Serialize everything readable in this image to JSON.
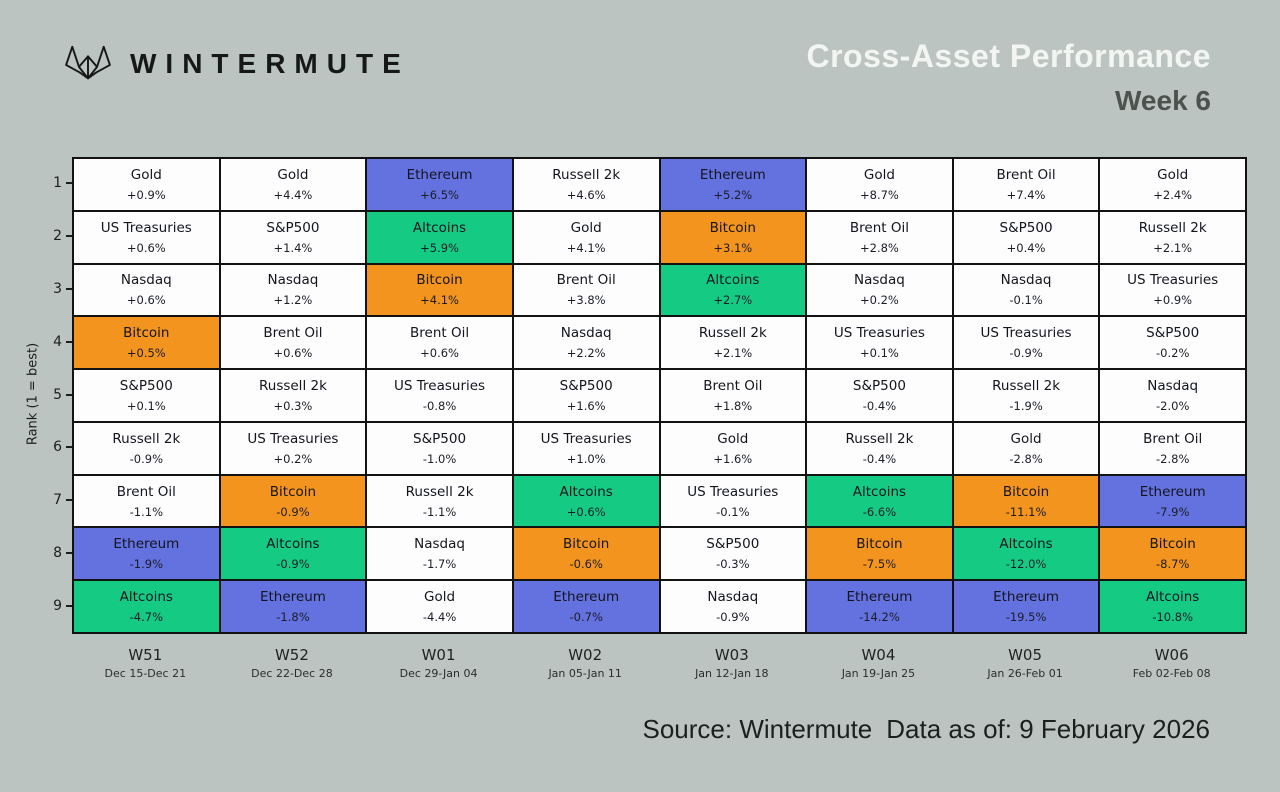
{
  "header": {
    "brand": "WINTERMUTE",
    "title": "Cross-Asset Performance",
    "subtitle": "Week 6"
  },
  "axis": {
    "ylabel": "Rank (1 = best)",
    "ranks": [
      "1",
      "2",
      "3",
      "4",
      "5",
      "6",
      "7",
      "8",
      "9"
    ]
  },
  "footer": {
    "source": "Source: Wintermute",
    "data_as_of": "Data as of: 9 February 2026"
  },
  "colors": {
    "background": "#bcc4c1",
    "cell_default": "#fcfdfc",
    "grid_border": "#121212",
    "title_light": "#f3f5f2",
    "subtitle_dark": "#4c524e",
    "asset_colors": {
      "Bitcoin": "#f3941f",
      "Ethereum": "#6372de",
      "Altcoins": "#15cb83"
    }
  },
  "chart_data": {
    "type": "heatmap",
    "title": "Cross-Asset Performance Week 6",
    "ylabel": "Rank (1 = best)",
    "legend_note": "colored cells highlight crypto assets: Bitcoin (orange), Ethereum (blue), Altcoins (green); all other assets white",
    "rank_range": [
      1,
      9
    ],
    "columns": [
      {
        "week": "W51",
        "dates": "Dec 15-Dec 21",
        "ranking": [
          {
            "asset": "Gold",
            "change": "+0.9%"
          },
          {
            "asset": "US Treasuries",
            "change": "+0.6%"
          },
          {
            "asset": "Nasdaq",
            "change": "+0.6%"
          },
          {
            "asset": "Bitcoin",
            "change": "+0.5%"
          },
          {
            "asset": "S&P500",
            "change": "+0.1%"
          },
          {
            "asset": "Russell 2k",
            "change": "-0.9%"
          },
          {
            "asset": "Brent Oil",
            "change": "-1.1%"
          },
          {
            "asset": "Ethereum",
            "change": "-1.9%"
          },
          {
            "asset": "Altcoins",
            "change": "-4.7%"
          }
        ]
      },
      {
        "week": "W52",
        "dates": "Dec 22-Dec 28",
        "ranking": [
          {
            "asset": "Gold",
            "change": "+4.4%"
          },
          {
            "asset": "S&P500",
            "change": "+1.4%"
          },
          {
            "asset": "Nasdaq",
            "change": "+1.2%"
          },
          {
            "asset": "Brent Oil",
            "change": "+0.6%"
          },
          {
            "asset": "Russell 2k",
            "change": "+0.3%"
          },
          {
            "asset": "US Treasuries",
            "change": "+0.2%"
          },
          {
            "asset": "Bitcoin",
            "change": "-0.9%"
          },
          {
            "asset": "Altcoins",
            "change": "-0.9%"
          },
          {
            "asset": "Ethereum",
            "change": "-1.8%"
          }
        ]
      },
      {
        "week": "W01",
        "dates": "Dec 29-Jan 04",
        "ranking": [
          {
            "asset": "Ethereum",
            "change": "+6.5%"
          },
          {
            "asset": "Altcoins",
            "change": "+5.9%"
          },
          {
            "asset": "Bitcoin",
            "change": "+4.1%"
          },
          {
            "asset": "Brent Oil",
            "change": "+0.6%"
          },
          {
            "asset": "US Treasuries",
            "change": "-0.8%"
          },
          {
            "asset": "S&P500",
            "change": "-1.0%"
          },
          {
            "asset": "Russell 2k",
            "change": "-1.1%"
          },
          {
            "asset": "Nasdaq",
            "change": "-1.7%"
          },
          {
            "asset": "Gold",
            "change": "-4.4%"
          }
        ]
      },
      {
        "week": "W02",
        "dates": "Jan 05-Jan 11",
        "ranking": [
          {
            "asset": "Russell 2k",
            "change": "+4.6%"
          },
          {
            "asset": "Gold",
            "change": "+4.1%"
          },
          {
            "asset": "Brent Oil",
            "change": "+3.8%"
          },
          {
            "asset": "Nasdaq",
            "change": "+2.2%"
          },
          {
            "asset": "S&P500",
            "change": "+1.6%"
          },
          {
            "asset": "US Treasuries",
            "change": "+1.0%"
          },
          {
            "asset": "Altcoins",
            "change": "+0.6%"
          },
          {
            "asset": "Bitcoin",
            "change": "-0.6%"
          },
          {
            "asset": "Ethereum",
            "change": "-0.7%"
          }
        ]
      },
      {
        "week": "W03",
        "dates": "Jan 12-Jan 18",
        "ranking": [
          {
            "asset": "Ethereum",
            "change": "+5.2%"
          },
          {
            "asset": "Bitcoin",
            "change": "+3.1%"
          },
          {
            "asset": "Altcoins",
            "change": "+2.7%"
          },
          {
            "asset": "Russell 2k",
            "change": "+2.1%"
          },
          {
            "asset": "Brent Oil",
            "change": "+1.8%"
          },
          {
            "asset": "Gold",
            "change": "+1.6%"
          },
          {
            "asset": "US Treasuries",
            "change": "-0.1%"
          },
          {
            "asset": "S&P500",
            "change": "-0.3%"
          },
          {
            "asset": "Nasdaq",
            "change": "-0.9%"
          }
        ]
      },
      {
        "week": "W04",
        "dates": "Jan 19-Jan 25",
        "ranking": [
          {
            "asset": "Gold",
            "change": "+8.7%"
          },
          {
            "asset": "Brent Oil",
            "change": "+2.8%"
          },
          {
            "asset": "Nasdaq",
            "change": "+0.2%"
          },
          {
            "asset": "US Treasuries",
            "change": "+0.1%"
          },
          {
            "asset": "S&P500",
            "change": "-0.4%"
          },
          {
            "asset": "Russell 2k",
            "change": "-0.4%"
          },
          {
            "asset": "Altcoins",
            "change": "-6.6%"
          },
          {
            "asset": "Bitcoin",
            "change": "-7.5%"
          },
          {
            "asset": "Ethereum",
            "change": "-14.2%"
          }
        ]
      },
      {
        "week": "W05",
        "dates": "Jan 26-Feb 01",
        "ranking": [
          {
            "asset": "Brent Oil",
            "change": "+7.4%"
          },
          {
            "asset": "S&P500",
            "change": "+0.4%"
          },
          {
            "asset": "Nasdaq",
            "change": "-0.1%"
          },
          {
            "asset": "US Treasuries",
            "change": "-0.9%"
          },
          {
            "asset": "Russell 2k",
            "change": "-1.9%"
          },
          {
            "asset": "Gold",
            "change": "-2.8%"
          },
          {
            "asset": "Bitcoin",
            "change": "-11.1%"
          },
          {
            "asset": "Altcoins",
            "change": "-12.0%"
          },
          {
            "asset": "Ethereum",
            "change": "-19.5%"
          }
        ]
      },
      {
        "week": "W06",
        "dates": "Feb 02-Feb 08",
        "ranking": [
          {
            "asset": "Gold",
            "change": "+2.4%"
          },
          {
            "asset": "Russell 2k",
            "change": "+2.1%"
          },
          {
            "asset": "US Treasuries",
            "change": "+0.9%"
          },
          {
            "asset": "S&P500",
            "change": "-0.2%"
          },
          {
            "asset": "Nasdaq",
            "change": "-2.0%"
          },
          {
            "asset": "Brent Oil",
            "change": "-2.8%"
          },
          {
            "asset": "Ethereum",
            "change": "-7.9%"
          },
          {
            "asset": "Bitcoin",
            "change": "-8.7%"
          },
          {
            "asset": "Altcoins",
            "change": "-10.8%"
          }
        ]
      }
    ]
  }
}
